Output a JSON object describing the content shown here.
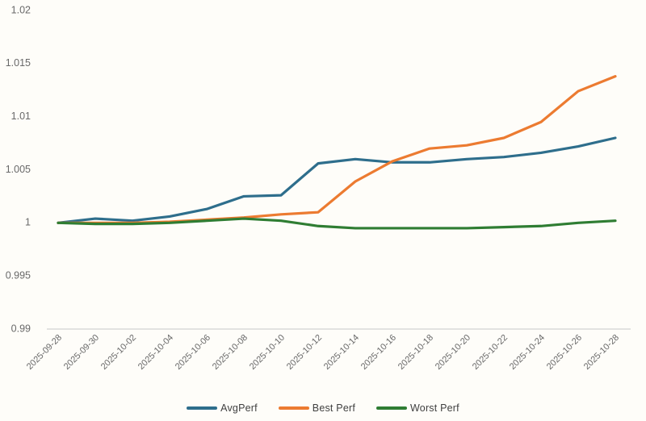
{
  "chart_data": {
    "type": "line",
    "title": "",
    "xlabel": "",
    "ylabel": "",
    "categories": [
      "2025-09-28",
      "2025-09-30",
      "2025-10-02",
      "2025-10-04",
      "2025-10-06",
      "2025-10-08",
      "2025-10-10",
      "2025-10-12",
      "2025-10-14",
      "2025-10-16",
      "2025-10-18",
      "2025-10-20",
      "2025-10-22",
      "2025-10-24",
      "2025-10-26",
      "2025-10-28"
    ],
    "series": [
      {
        "name": "AvgPerf",
        "color": "#2e6e8c",
        "values": [
          1.0,
          1.0004,
          1.0002,
          1.0006,
          1.0013,
          1.0025,
          1.0026,
          1.0056,
          1.006,
          1.0057,
          1.0057,
          1.006,
          1.0062,
          1.0066,
          1.0072,
          1.008
        ]
      },
      {
        "name": "Best Perf",
        "color": "#ec7b31",
        "values": [
          1.0,
          1.0,
          1.0,
          1.0001,
          1.0003,
          1.0005,
          1.0008,
          1.001,
          1.0039,
          1.0058,
          1.007,
          1.0073,
          1.008,
          1.0095,
          1.0124,
          1.0138
        ]
      },
      {
        "name": "Worst Perf",
        "color": "#2f7d33",
        "values": [
          1.0,
          0.9999,
          0.9999,
          1.0,
          1.0002,
          1.0004,
          1.0002,
          0.9997,
          0.9995,
          0.9995,
          0.9995,
          0.9995,
          0.9996,
          0.9997,
          1.0,
          1.0002
        ]
      }
    ],
    "ylim": [
      0.99,
      1.02
    ],
    "y_tick_labels": [
      "1.02",
      "1.015",
      "1.01",
      "1.005",
      "1",
      "0.995",
      "0.99"
    ],
    "y_tick_values": [
      1.02,
      1.015,
      1.01,
      1.005,
      1.0,
      0.995,
      0.99
    ],
    "grid": false,
    "legend_position": "bottom",
    "colors": {
      "axis_line": "#d9d9d9",
      "tick_label": "#696969",
      "legend_text": "#404040",
      "background": "#fefdf9"
    }
  }
}
